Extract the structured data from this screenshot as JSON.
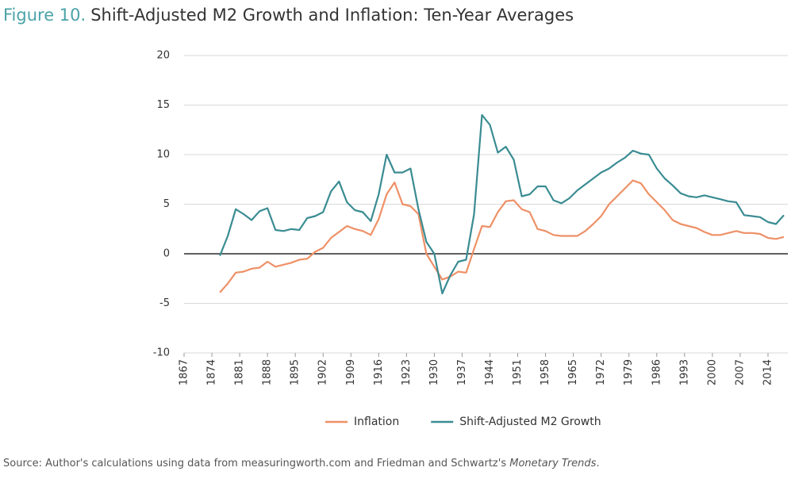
{
  "chart_data": {
    "type": "line",
    "figure_label": "Figure 10.",
    "title": "Shift-Adjusted M2 Growth and Inflation: Ten-Year Averages",
    "x": [
      1876,
      1878,
      1880,
      1882,
      1884,
      1886,
      1888,
      1890,
      1892,
      1894,
      1896,
      1898,
      1900,
      1902,
      1904,
      1906,
      1908,
      1910,
      1912,
      1914,
      1916,
      1918,
      1920,
      1922,
      1924,
      1926,
      1928,
      1930,
      1932,
      1934,
      1936,
      1938,
      1940,
      1942,
      1944,
      1946,
      1948,
      1950,
      1952,
      1954,
      1956,
      1958,
      1960,
      1962,
      1964,
      1966,
      1968,
      1970,
      1972,
      1974,
      1976,
      1978,
      1980,
      1982,
      1984,
      1986,
      1988,
      1990,
      1992,
      1994,
      1996,
      1998,
      2000,
      2002,
      2004,
      2006,
      2008,
      2010,
      2012,
      2014,
      2016,
      2018
    ],
    "series": [
      {
        "name": "Inflation",
        "color": "#ee9066",
        "values": [
          -3.9,
          -3.0,
          -1.9,
          -1.8,
          -1.5,
          -1.4,
          -0.8,
          -1.3,
          -1.1,
          -0.9,
          -0.6,
          -0.5,
          0.2,
          0.6,
          1.6,
          2.2,
          2.8,
          2.5,
          2.3,
          1.9,
          3.5,
          6.0,
          7.2,
          5.0,
          4.8,
          4.0,
          0.0,
          -1.3,
          -2.6,
          -2.3,
          -1.8,
          -1.9,
          0.5,
          2.8,
          2.7,
          4.2,
          5.3,
          5.4,
          4.5,
          4.2,
          2.5,
          2.3,
          1.9,
          1.8,
          1.8,
          1.8,
          2.3,
          3.0,
          3.8,
          5.0,
          5.8,
          6.6,
          7.4,
          7.1,
          6.0,
          5.2,
          4.4,
          3.4,
          3.0,
          2.8,
          2.6,
          2.2,
          1.9,
          1.9,
          2.1,
          2.3,
          2.1,
          2.1,
          2.0,
          1.6,
          1.5,
          1.7
        ]
      },
      {
        "name": "Shift-Adjusted M2 Growth",
        "color": "#3a8c92",
        "values": [
          -0.2,
          1.8,
          4.5,
          4.0,
          3.4,
          4.3,
          4.6,
          2.4,
          2.3,
          2.5,
          2.4,
          3.6,
          3.8,
          4.2,
          6.3,
          7.3,
          5.2,
          4.4,
          4.2,
          3.3,
          6.0,
          10.0,
          8.2,
          8.2,
          8.6,
          4.5,
          1.2,
          0.0,
          -4.0,
          -2.2,
          -0.8,
          -0.6,
          4.0,
          14.0,
          13.0,
          10.2,
          10.8,
          9.5,
          5.8,
          6.0,
          6.8,
          6.8,
          5.4,
          5.1,
          5.6,
          6.4,
          7.0,
          7.6,
          8.2,
          8.6,
          9.2,
          9.7,
          10.4,
          10.1,
          10.0,
          8.6,
          7.6,
          6.9,
          6.1,
          5.8,
          5.7,
          5.9,
          5.7,
          5.5,
          5.3,
          5.2,
          3.9,
          3.8,
          3.7,
          3.2,
          3.0,
          3.9
        ]
      }
    ],
    "xlim": [
      1867,
      2019
    ],
    "ylim": [
      -10,
      20
    ],
    "xticks": [
      1867,
      1874,
      1881,
      1888,
      1895,
      1902,
      1909,
      1916,
      1923,
      1930,
      1937,
      1944,
      1951,
      1958,
      1965,
      1972,
      1979,
      1986,
      1993,
      2000,
      2007,
      2014
    ],
    "yticks": [
      -10,
      -5,
      0,
      5,
      10,
      15,
      20
    ],
    "grid": true,
    "zero_line_color": "#000000",
    "legend": "bottom",
    "source": [
      "Source: Author's calculations using data from measuringworth.com and Friedman and Schwartz's ",
      "Monetary Trends",
      "."
    ]
  }
}
